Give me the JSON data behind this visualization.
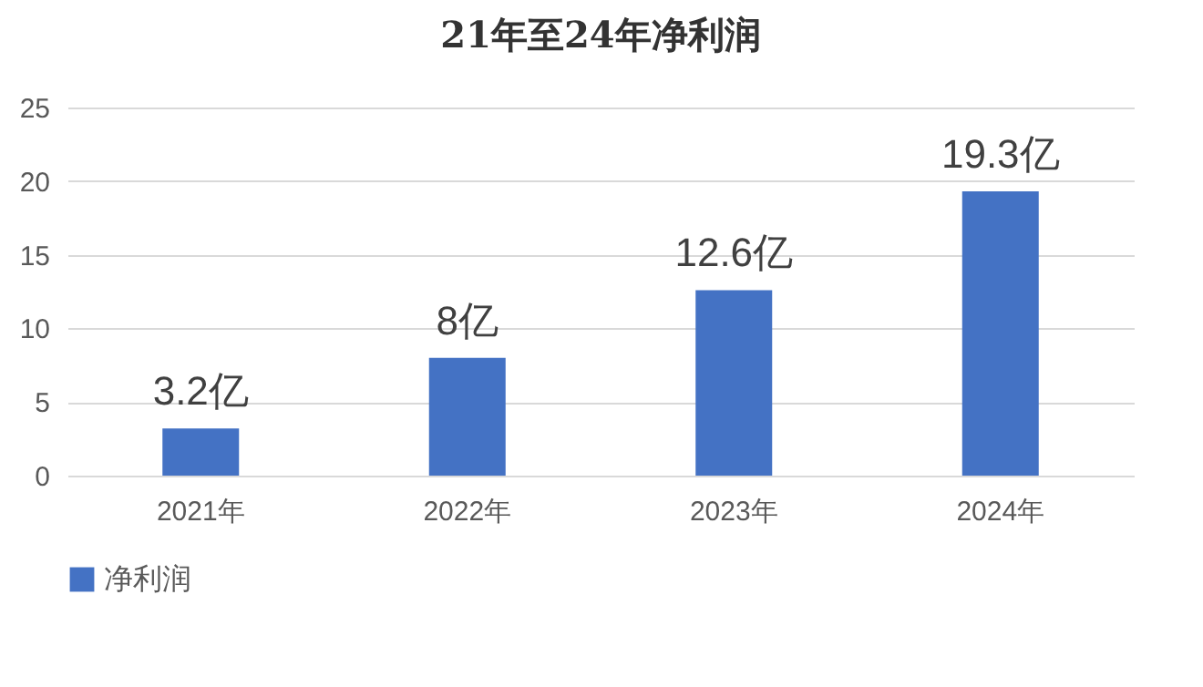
{
  "chart_data": {
    "type": "bar",
    "title": "21年至24年净利润",
    "categories": [
      "2021年",
      "2022年",
      "2023年",
      "2024年"
    ],
    "series": [
      {
        "name": "净利润",
        "color": "#4472c4",
        "values": [
          3.2,
          8,
          12.6,
          19.3
        ],
        "value_labels": [
          "3.2亿",
          "8亿",
          "12.6亿",
          "19.3亿"
        ]
      }
    ],
    "ylim": [
      0,
      25
    ],
    "yticks": [
      0,
      5,
      10,
      15,
      20,
      25
    ],
    "grid": "y",
    "legend": "bottom"
  }
}
